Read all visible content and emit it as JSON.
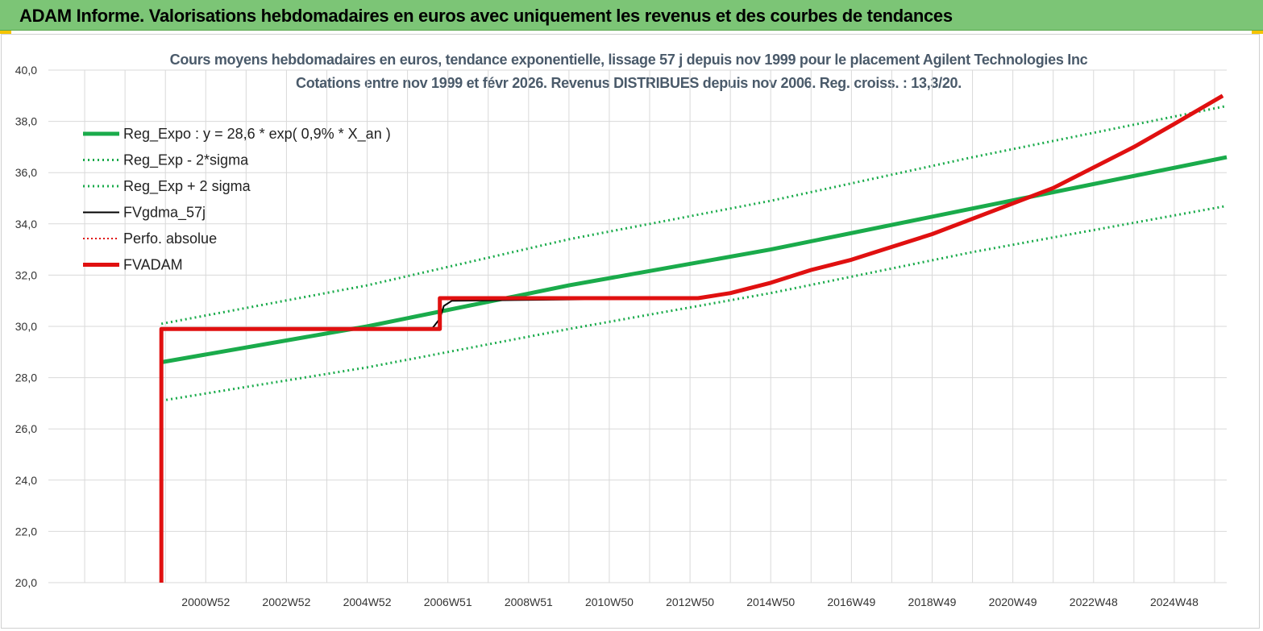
{
  "header": {
    "title": "ADAM Informe. Valorisations hebdomadaires en euros avec uniquement les revenus et des courbes de tendances"
  },
  "colors": {
    "header_bg": "#7cc576",
    "green": "#1aab4b",
    "red": "#e01010",
    "black": "#000000",
    "grid": "#d9d9d9"
  },
  "chart_data": {
    "type": "line",
    "title": "Cours moyens hebdomadaires en euros, tendance exponentielle, lissage 57 j depuis nov 1999 pour le placement Agilent Technologies Inc",
    "subtitle": "Cotations entre nov 1999 et févr 2026. Revenus DISTRIBUES depuis nov 2006. Reg. croiss. : 13,3/20.",
    "xlabel": "",
    "ylabel": "",
    "ylim": [
      20,
      40
    ],
    "xlim": [
      1997.1,
      2026.3
    ],
    "y_ticks": [
      "20,0",
      "22,0",
      "24,0",
      "26,0",
      "28,0",
      "30,0",
      "32,0",
      "34,0",
      "36,0",
      "38,0",
      "40,0"
    ],
    "x_ticks": [
      {
        "x": 2001.0,
        "label": "2000W52"
      },
      {
        "x": 2003.0,
        "label": "2002W52"
      },
      {
        "x": 2005.0,
        "label": "2004W52"
      },
      {
        "x": 2007.0,
        "label": "2006W51"
      },
      {
        "x": 2009.0,
        "label": "2008W51"
      },
      {
        "x": 2011.0,
        "label": "2010W50"
      },
      {
        "x": 2013.0,
        "label": "2012W50"
      },
      {
        "x": 2015.0,
        "label": "2014W50"
      },
      {
        "x": 2017.0,
        "label": "2016W49"
      },
      {
        "x": 2019.0,
        "label": "2018W49"
      },
      {
        "x": 2021.0,
        "label": "2020W49"
      },
      {
        "x": 2023.0,
        "label": "2022W48"
      },
      {
        "x": 2025.0,
        "label": "2024W48"
      }
    ],
    "grid": true,
    "legend_position": "top-left",
    "series": [
      {
        "name": "Reg_Expo : y = 28,6 * exp( 0,9% *  X_an )",
        "color": "#1aab4b",
        "style": "solid-thick",
        "points": [
          [
            1999.9,
            28.6
          ],
          [
            2005.0,
            30.0
          ],
          [
            2010.0,
            31.6
          ],
          [
            2015.0,
            33.0
          ],
          [
            2020.0,
            34.6
          ],
          [
            2026.3,
            36.6
          ]
        ]
      },
      {
        "name": "Reg_Exp - 2*sigma",
        "color": "#1aab4b",
        "style": "dotted",
        "points": [
          [
            1999.9,
            27.1
          ],
          [
            2005.0,
            28.4
          ],
          [
            2010.0,
            29.9
          ],
          [
            2015.0,
            31.3
          ],
          [
            2020.0,
            32.9
          ],
          [
            2026.3,
            34.7
          ]
        ]
      },
      {
        "name": "Reg_Exp + 2 sigma",
        "color": "#1aab4b",
        "style": "dotted",
        "points": [
          [
            1999.9,
            30.1
          ],
          [
            2005.0,
            31.6
          ],
          [
            2010.0,
            33.4
          ],
          [
            2015.0,
            34.9
          ],
          [
            2020.0,
            36.6
          ],
          [
            2026.3,
            38.6
          ]
        ]
      },
      {
        "name": "FVgdma_57j",
        "color": "#000000",
        "style": "solid-thin",
        "points": [
          [
            1999.9,
            20.0
          ],
          [
            1999.9,
            29.9
          ],
          [
            2006.6,
            29.9
          ],
          [
            2006.8,
            30.3
          ],
          [
            2006.9,
            30.8
          ],
          [
            2007.1,
            31.0
          ],
          [
            2013.2,
            31.1
          ],
          [
            2014.0,
            31.3
          ],
          [
            2015.0,
            31.7
          ],
          [
            2016.0,
            32.2
          ],
          [
            2017.0,
            32.6
          ],
          [
            2018.0,
            33.1
          ],
          [
            2019.0,
            33.6
          ],
          [
            2020.0,
            34.2
          ],
          [
            2021.0,
            34.8
          ],
          [
            2022.0,
            35.4
          ],
          [
            2023.0,
            36.2
          ],
          [
            2024.0,
            37.0
          ],
          [
            2025.0,
            37.9
          ],
          [
            2026.2,
            39.0
          ]
        ]
      },
      {
        "name": "Perfo. absolue",
        "color": "#e01010",
        "style": "dotted-thin",
        "points": []
      },
      {
        "name": "FVADAM",
        "color": "#e01010",
        "style": "solid-thick",
        "points": [
          [
            1999.9,
            20.0
          ],
          [
            1999.9,
            29.9
          ],
          [
            2006.8,
            29.9
          ],
          [
            2006.8,
            31.1
          ],
          [
            2013.2,
            31.1
          ],
          [
            2014.0,
            31.3
          ],
          [
            2015.0,
            31.7
          ],
          [
            2016.0,
            32.2
          ],
          [
            2017.0,
            32.6
          ],
          [
            2018.0,
            33.1
          ],
          [
            2019.0,
            33.6
          ],
          [
            2020.0,
            34.2
          ],
          [
            2021.0,
            34.8
          ],
          [
            2022.0,
            35.4
          ],
          [
            2023.0,
            36.2
          ],
          [
            2024.0,
            37.0
          ],
          [
            2025.0,
            37.9
          ],
          [
            2026.2,
            39.0
          ]
        ]
      }
    ]
  }
}
